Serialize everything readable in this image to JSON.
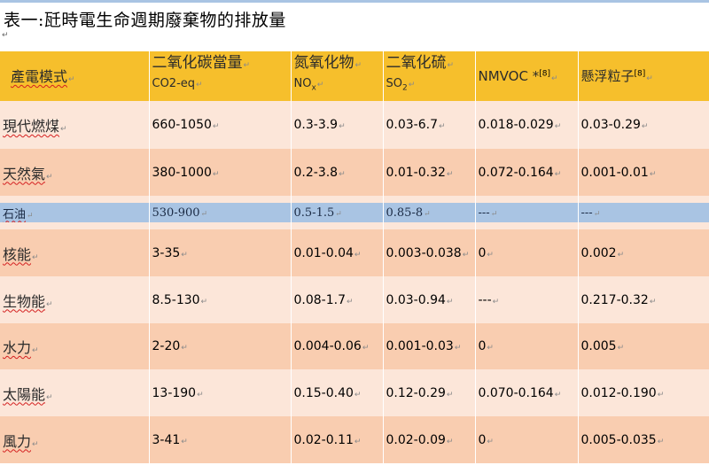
{
  "title": "表一:瓩時電生命週期廢棄物的排放量",
  "para_mark": "↵",
  "cell_mark": "↵",
  "colors": {
    "header": "#f6bf2c",
    "row_light": "#fce6d9",
    "row_dark": "#f9cdb0",
    "row_blue": "#a9c4e3"
  },
  "header": {
    "mode": "產電模式",
    "co2_line1": "二氧化碳當量",
    "co2_line2": "CO2-eq",
    "nox_line1": "氮氧化物",
    "nox_line2": "NO",
    "nox_sub": "x",
    "so2_line1": "二氧化硫",
    "so2_line2": "SO",
    "so2_sub": "2",
    "nmvoc": "NMVOC *",
    "nmvoc_ref": "[8]",
    "pm": "懸浮粒子",
    "pm_ref": "[8]"
  },
  "rows": [
    {
      "name": "現代燃煤",
      "co2": "660-1050",
      "nox": "0.3-3.9",
      "so2": "0.03-6.7",
      "nmvoc": "0.018-0.029",
      "pm": "0.03-0.29"
    },
    {
      "name": "天然氣",
      "co2": "380-1000",
      "nox": "0.2-3.8",
      "so2": "0.01-0.32",
      "nmvoc": "0.072-0.164",
      "pm": "0.001-0.01"
    },
    {
      "name": "石油",
      "co2": "530-900",
      "nox": "0.5-1.5",
      "so2": "0.85-8",
      "nmvoc": "---",
      "pm": "---"
    },
    {
      "name": "核能",
      "co2": "3-35",
      "nox": "0.01-0.04",
      "so2": "0.003-0.038",
      "nmvoc": "0",
      "pm": "0.002"
    },
    {
      "name": "生物能",
      "co2": "8.5-130",
      "nox": "0.08-1.7",
      "so2": "0.03-0.94",
      "nmvoc": "---",
      "pm": "0.217-0.32"
    },
    {
      "name": "水力",
      "co2": "2-20",
      "nox": "0.004-0.06",
      "so2": "0.001-0.03",
      "nmvoc": "0",
      "pm": "0.005"
    },
    {
      "name": "太陽能",
      "co2": "13-190",
      "nox": "0.15-0.40",
      "so2": "0.12-0.29",
      "nmvoc": "0.070-0.164",
      "pm": "0.012-0.190"
    },
    {
      "name": "風力",
      "co2": "3-41",
      "nox": "0.02-0.11",
      "so2": "0.02-0.09",
      "nmvoc": "0",
      "pm": "0.005-0.035"
    }
  ]
}
